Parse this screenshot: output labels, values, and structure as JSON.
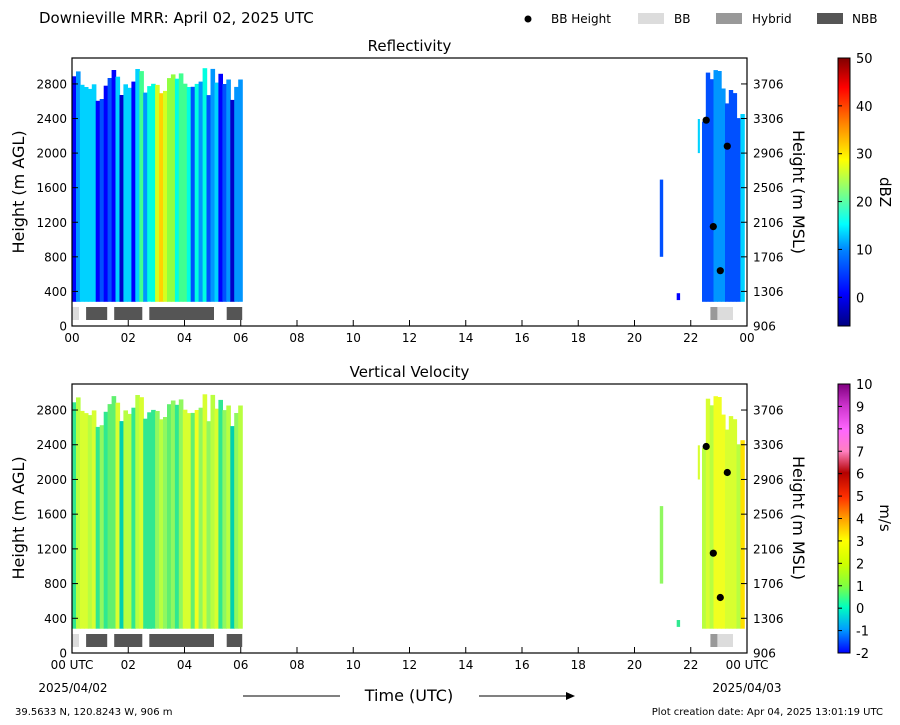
{
  "header": {
    "title": "Downieville MRR:  April 02, 2025 UTC",
    "legend": [
      {
        "kind": "dot",
        "label": "BB Height",
        "color": "#000000"
      },
      {
        "kind": "rect",
        "label": "BB",
        "color": "#dcdcdc"
      },
      {
        "kind": "rect",
        "label": "Hybrid",
        "color": "#999999"
      },
      {
        "kind": "rect",
        "label": "NBB",
        "color": "#555555"
      }
    ]
  },
  "footer": {
    "location": "39.5633 N, 120.8243 W, 906 m",
    "creation": "Plot creation date: Apr 04, 2025 13:01:19 UTC",
    "start_date": "2025/04/02",
    "end_date": "2025/04/03",
    "xlabel": "Time (UTC)"
  },
  "chart_data": [
    {
      "type": "heatmap",
      "title": "Reflectivity",
      "ylabel": "Height (m AGL)",
      "ylabel_right": "Height (m MSL)",
      "xlim": [
        0,
        24
      ],
      "ylim": [
        0,
        3100
      ],
      "x_ticks": [
        "00",
        "02",
        "04",
        "06",
        "08",
        "10",
        "12",
        "14",
        "16",
        "18",
        "20",
        "22",
        "00"
      ],
      "y_ticks": [
        0,
        400,
        800,
        1200,
        1600,
        2000,
        2400,
        2800
      ],
      "y_ticks_right": [
        906,
        1306,
        1706,
        2106,
        2506,
        2906,
        3306,
        3706
      ],
      "colorbar": {
        "label": "dBZ",
        "min": -6,
        "max": 50,
        "ticks": [
          0,
          10,
          20,
          30,
          40,
          50
        ]
      },
      "echo_spans": [
        {
          "x0": 0.0,
          "x1": 6.05,
          "y0": 280,
          "y1": 3000
        },
        {
          "x0": 20.9,
          "x1": 21.0,
          "y0": 800,
          "y1": 1800
        },
        {
          "x0": 21.5,
          "x1": 21.6,
          "y0": 300,
          "y1": 400
        },
        {
          "x0": 22.25,
          "x1": 22.3,
          "y0": 2000,
          "y1": 2500
        },
        {
          "x0": 22.4,
          "x1": 23.9,
          "y0": 280,
          "y1": 3000
        }
      ],
      "bb_height": [
        {
          "x": 22.55,
          "y": 2380
        },
        {
          "x": 22.8,
          "y": 1150
        },
        {
          "x": 23.05,
          "y": 640
        },
        {
          "x": 23.3,
          "y": 2080
        }
      ],
      "bb_classification": [
        {
          "x0": 0.0,
          "x1": 0.25,
          "type": "BB"
        },
        {
          "x0": 0.5,
          "x1": 1.25,
          "type": "NBB"
        },
        {
          "x0": 1.5,
          "x1": 2.5,
          "type": "NBB"
        },
        {
          "x0": 2.75,
          "x1": 5.05,
          "type": "NBB"
        },
        {
          "x0": 5.5,
          "x1": 6.05,
          "type": "NBB"
        },
        {
          "x0": 22.7,
          "x1": 22.95,
          "type": "Hybrid"
        },
        {
          "x0": 22.95,
          "x1": 23.5,
          "type": "BB"
        }
      ]
    },
    {
      "type": "heatmap",
      "title": "Vertical Velocity",
      "ylabel": "Height (m AGL)",
      "ylabel_right": "Height (m MSL)",
      "xlim": [
        0,
        24
      ],
      "ylim": [
        0,
        3100
      ],
      "x_ticks": [
        "00 UTC",
        "02",
        "04",
        "06",
        "08",
        "10",
        "12",
        "14",
        "16",
        "18",
        "20",
        "22",
        "00 UTC"
      ],
      "y_ticks": [
        0,
        400,
        800,
        1200,
        1600,
        2000,
        2400,
        2800
      ],
      "y_ticks_right": [
        906,
        1306,
        1706,
        2106,
        2506,
        2906,
        3306,
        3706
      ],
      "colorbar": {
        "label": "m/s",
        "min": -2,
        "max": 10,
        "ticks": [
          -2,
          -1,
          0,
          1,
          2,
          3,
          4,
          5,
          6,
          7,
          8,
          9,
          10
        ]
      },
      "echo_spans": [
        {
          "x0": 0.0,
          "x1": 6.05,
          "y0": 280,
          "y1": 3000
        },
        {
          "x0": 20.9,
          "x1": 21.0,
          "y0": 800,
          "y1": 1800
        },
        {
          "x0": 21.5,
          "x1": 21.6,
          "y0": 300,
          "y1": 400
        },
        {
          "x0": 22.25,
          "x1": 22.3,
          "y0": 2000,
          "y1": 2500
        },
        {
          "x0": 22.4,
          "x1": 23.9,
          "y0": 280,
          "y1": 3000
        }
      ],
      "bb_height": [
        {
          "x": 22.55,
          "y": 2380
        },
        {
          "x": 22.8,
          "y": 1150
        },
        {
          "x": 23.05,
          "y": 640
        },
        {
          "x": 23.3,
          "y": 2080
        }
      ],
      "bb_classification": [
        {
          "x0": 0.0,
          "x1": 0.25,
          "type": "BB"
        },
        {
          "x0": 0.5,
          "x1": 1.25,
          "type": "NBB"
        },
        {
          "x0": 1.5,
          "x1": 2.5,
          "type": "NBB"
        },
        {
          "x0": 2.75,
          "x1": 5.05,
          "type": "NBB"
        },
        {
          "x0": 5.5,
          "x1": 6.05,
          "type": "NBB"
        },
        {
          "x0": 22.7,
          "x1": 22.95,
          "type": "Hybrid"
        },
        {
          "x0": 22.95,
          "x1": 23.5,
          "type": "BB"
        }
      ]
    }
  ]
}
